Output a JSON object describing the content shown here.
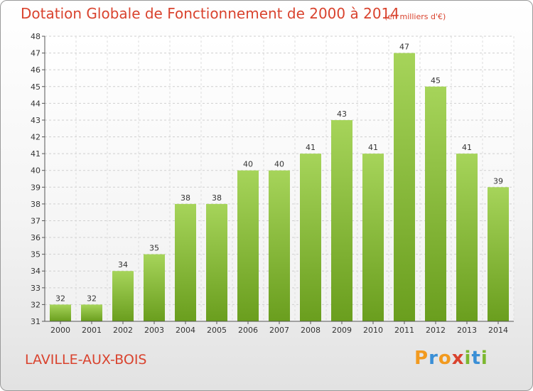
{
  "header": {
    "title": "Dotation Globale de Fonctionnement de 2000 à 2014",
    "unit": "(en milliers d'€)"
  },
  "footer": {
    "commune": "LAVILLE-AUX-BOIS",
    "logo_letters": [
      "P",
      "r",
      "o",
      "x",
      "i",
      "t",
      "i"
    ],
    "logo_colors": [
      "#f29a1f",
      "#3a8fd6",
      "#f29a1f",
      "#d9432e",
      "#7cb82f",
      "#3a8fd6",
      "#7cb82f"
    ]
  },
  "colors": {
    "bar_light": "#a6d45a",
    "bar_dark": "#6a9e1e",
    "title": "#d9432e"
  },
  "chart_data": {
    "type": "bar",
    "title": "Dotation Globale de Fonctionnement de 2000 à 2014",
    "subtitle": "(en milliers d'€)",
    "categories": [
      "2000",
      "2001",
      "2002",
      "2003",
      "2004",
      "2005",
      "2006",
      "2007",
      "2008",
      "2009",
      "2010",
      "2011",
      "2012",
      "2013",
      "2014"
    ],
    "values": [
      32,
      32,
      34,
      35,
      38,
      38,
      40,
      40,
      41,
      43,
      41,
      47,
      45,
      41,
      39
    ],
    "ylim": [
      31,
      48
    ],
    "yticks": [
      31,
      32,
      33,
      34,
      35,
      36,
      37,
      38,
      39,
      40,
      41,
      42,
      43,
      44,
      45,
      46,
      47,
      48
    ],
    "grid": true,
    "data_labels": true
  }
}
